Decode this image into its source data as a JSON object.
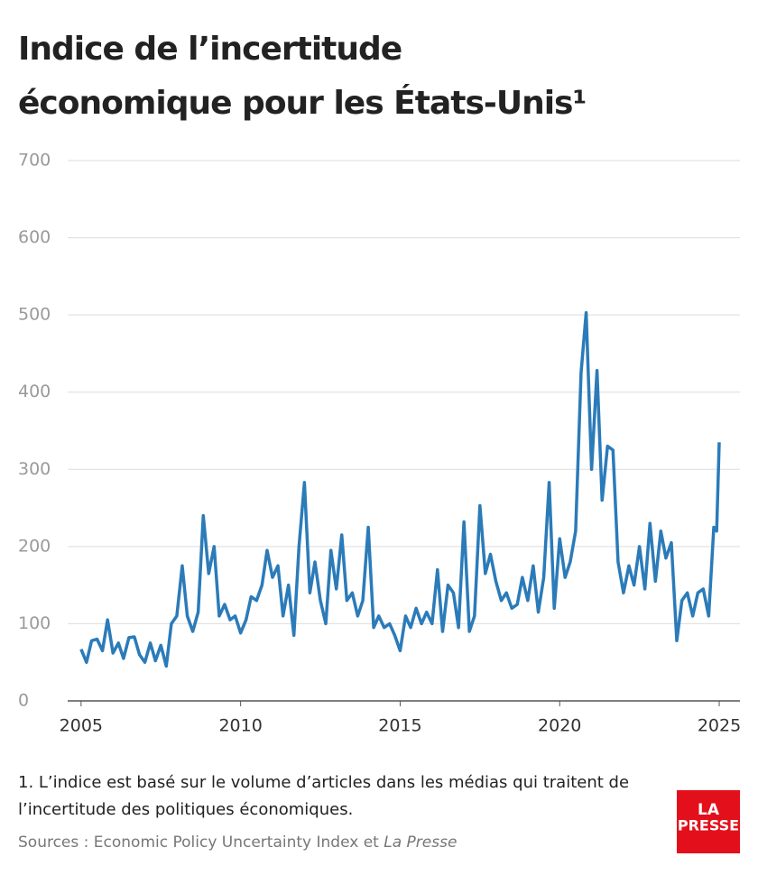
{
  "chart_data": {
    "type": "line",
    "title_lines": [
      "Indice de l’incertitude",
      "économique pour les États-Unis¹"
    ],
    "footnote_lines": [
      "1. L’indice est basé sur le volume d’articles dans les médias qui traitent de",
      "l’incertitude des politiques économiques."
    ],
    "source": "Sources : Economic Policy Uncertainty Index et",
    "source_italic": "La Presse",
    "logo_lines": [
      "LA",
      "PRESSE"
    ],
    "xlim": [
      2004.58,
      2025.65
    ],
    "xticks": [
      2005,
      2010,
      2015,
      2020,
      2025
    ],
    "ylim": [
      0,
      700
    ],
    "yticks": [
      0,
      100,
      200,
      300,
      400,
      500,
      600,
      700
    ],
    "grid": true,
    "series": [
      {
        "name": null,
        "color": "#2b7bb9",
        "x": [
          2005.0,
          2005.17,
          2005.33,
          2005.5,
          2005.67,
          2005.83,
          2006.0,
          2006.17,
          2006.33,
          2006.5,
          2006.67,
          2006.83,
          2007.0,
          2007.17,
          2007.33,
          2007.5,
          2007.67,
          2007.83,
          2008.0,
          2008.17,
          2008.33,
          2008.5,
          2008.67,
          2008.83,
          2009.0,
          2009.17,
          2009.33,
          2009.5,
          2009.67,
          2009.83,
          2010.0,
          2010.17,
          2010.33,
          2010.5,
          2010.67,
          2010.83,
          2011.0,
          2011.17,
          2011.33,
          2011.5,
          2011.67,
          2011.83,
          2012.0,
          2012.17,
          2012.33,
          2012.5,
          2012.67,
          2012.83,
          2013.0,
          2013.17,
          2013.33,
          2013.5,
          2013.67,
          2013.83,
          2014.0,
          2014.17,
          2014.33,
          2014.5,
          2014.67,
          2014.83,
          2015.0,
          2015.17,
          2015.33,
          2015.5,
          2015.67,
          2015.83,
          2016.0,
          2016.17,
          2016.33,
          2016.5,
          2016.67,
          2016.83,
          2017.0,
          2017.17,
          2017.33,
          2017.5,
          2017.67,
          2017.83,
          2018.0,
          2018.17,
          2018.33,
          2018.5,
          2018.67,
          2018.83,
          2019.0,
          2019.17,
          2019.33,
          2019.5,
          2019.67,
          2019.83,
          2020.0,
          2020.17,
          2020.33,
          2020.5,
          2020.67,
          2020.83,
          2021.0,
          2021.17,
          2021.33,
          2021.5,
          2021.67,
          2021.83,
          2022.0,
          2022.17,
          2022.33,
          2022.5,
          2022.67,
          2022.83,
          2023.0,
          2023.17,
          2023.33,
          2023.5,
          2023.67,
          2023.83,
          2024.0,
          2024.17,
          2024.33,
          2024.5,
          2024.67,
          2024.83,
          2024.92,
          2025.0
        ],
        "values": [
          67,
          50,
          78,
          80,
          65,
          105,
          62,
          75,
          55,
          82,
          83,
          60,
          50,
          75,
          52,
          72,
          45,
          100,
          110,
          175,
          110,
          90,
          115,
          240,
          165,
          200,
          110,
          125,
          105,
          110,
          88,
          105,
          135,
          130,
          150,
          195,
          160,
          175,
          110,
          150,
          85,
          200,
          283,
          140,
          180,
          130,
          100,
          195,
          145,
          215,
          130,
          140,
          110,
          130,
          225,
          95,
          110,
          95,
          100,
          85,
          65,
          110,
          95,
          120,
          100,
          115,
          100,
          170,
          90,
          150,
          140,
          95,
          232,
          90,
          110,
          253,
          165,
          190,
          155,
          130,
          140,
          120,
          125,
          160,
          130,
          175,
          115,
          160,
          283,
          120,
          210,
          160,
          180,
          220,
          425,
          503,
          300,
          428,
          260,
          330,
          325,
          180,
          140,
          175,
          150,
          200,
          145,
          230,
          155,
          220,
          185,
          205,
          78,
          130,
          140,
          110,
          140,
          145,
          110,
          225,
          220,
          335
        ]
      }
    ]
  }
}
